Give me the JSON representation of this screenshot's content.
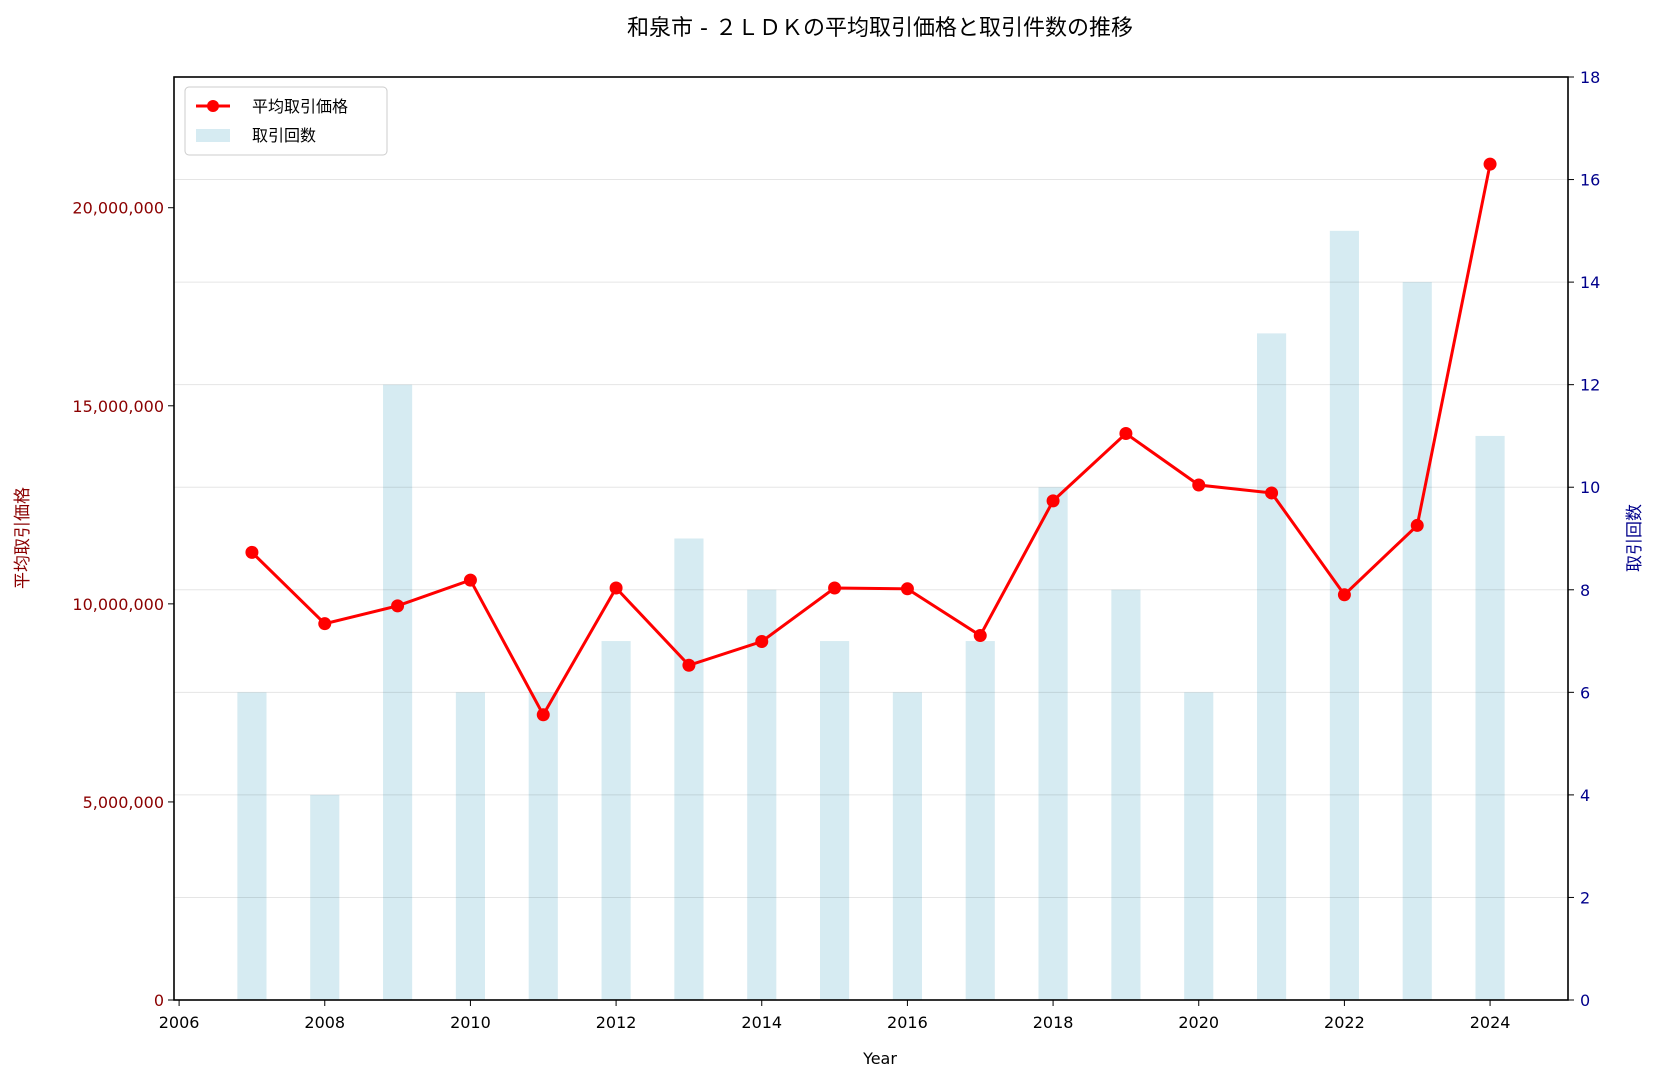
{
  "chart_data": {
    "type": "bar+line",
    "title": "和泉市 - ２ＬＤＫの平均取引価格と取引件数の推移",
    "xlabel": "Year",
    "ylabel_left": "平均取引価格",
    "ylabel_right": "取引回数",
    "x": [
      2007,
      2008,
      2009,
      2010,
      2011,
      2012,
      2013,
      2014,
      2015,
      2016,
      2017,
      2018,
      2019,
      2020,
      2021,
      2022,
      2023,
      2024
    ],
    "series": [
      {
        "name": "平均取引価格",
        "type": "line",
        "axis": "left",
        "color": "#ff0000",
        "values": [
          11300000,
          9500000,
          9950000,
          10600000,
          7200000,
          10400000,
          8450000,
          9050000,
          10400000,
          10380000,
          9200000,
          12600000,
          14300000,
          13000000,
          12800000,
          10230000,
          11980000,
          21100000
        ]
      },
      {
        "name": "取引回数",
        "type": "bar",
        "axis": "right",
        "color": "#add8e6",
        "values": [
          6,
          4,
          12,
          6,
          6,
          7,
          9,
          8,
          7,
          6,
          7,
          10,
          8,
          6,
          13,
          15,
          14,
          11
        ]
      }
    ],
    "xlim": [
      2005.93,
      2025.07
    ],
    "ylim_left": [
      0,
      23300000
    ],
    "ylim_right": [
      0,
      18
    ],
    "xticks": [
      2006,
      2008,
      2010,
      2012,
      2014,
      2016,
      2018,
      2020,
      2022,
      2024
    ],
    "yticks_left": [
      0,
      5000000,
      10000000,
      15000000,
      20000000
    ],
    "yticks_left_labels": [
      "0",
      "5,000,000",
      "10,000,000",
      "15,000,000",
      "20,000,000"
    ],
    "yticks_right": [
      0,
      2,
      4,
      6,
      8,
      10,
      12,
      14,
      16,
      18
    ],
    "grid": true,
    "legend": "top-left",
    "colors": {
      "left_axis": "#8b0000",
      "right_axis": "#00008b"
    }
  }
}
